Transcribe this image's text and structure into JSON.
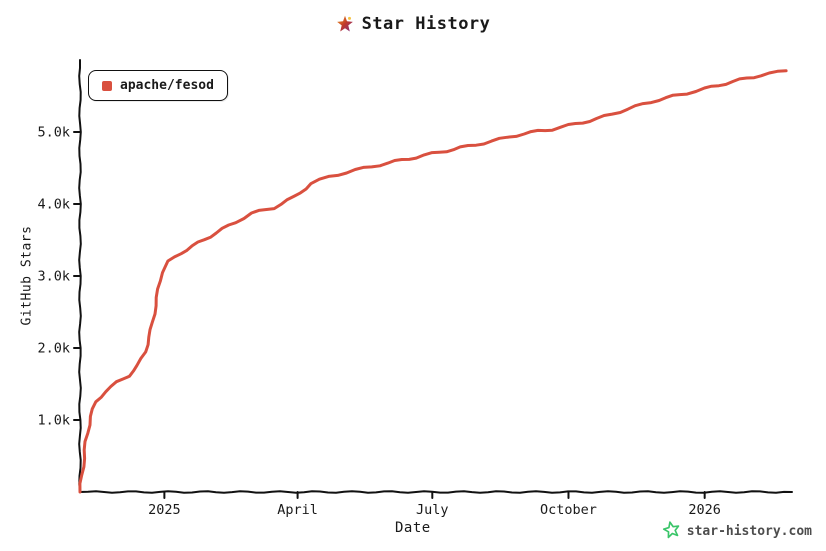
{
  "title": {
    "text": "Star History",
    "icon": "star-history-logo"
  },
  "legend": {
    "label": "apache/fesod"
  },
  "footer": {
    "brand": "star-history.com",
    "brand_color": "#3ac569",
    "icon": "green-star"
  },
  "colors": {
    "line": "#d9503f",
    "axis": "#111111",
    "text": "#1a1a1a"
  },
  "chart_data": {
    "type": "line",
    "title": "Star History",
    "xlabel": "Date",
    "ylabel": "GitHub Stars",
    "grid": false,
    "legend_position": "top-left",
    "x_range": [
      "2024-11-05",
      "2026-03-01"
    ],
    "y_range": [
      0,
      6000
    ],
    "x_ticks": [
      {
        "label": "2025",
        "date": "2025-01-01"
      },
      {
        "label": "April",
        "date": "2025-04-01"
      },
      {
        "label": "July",
        "date": "2025-07-01"
      },
      {
        "label": "October",
        "date": "2025-10-01"
      },
      {
        "label": "2026",
        "date": "2026-01-01"
      }
    ],
    "y_ticks": [
      {
        "label": "1.0k",
        "value": 1000
      },
      {
        "label": "2.0k",
        "value": 2000
      },
      {
        "label": "3.0k",
        "value": 3000
      },
      {
        "label": "4.0k",
        "value": 4000
      },
      {
        "label": "5.0k",
        "value": 5000
      }
    ],
    "series": [
      {
        "name": "apache/fesod",
        "color": "#d9503f",
        "points": [
          [
            "2024-11-05",
            0
          ],
          [
            "2024-11-07",
            350
          ],
          [
            "2024-11-09",
            700
          ],
          [
            "2024-11-12",
            1050
          ],
          [
            "2024-11-16",
            1250
          ],
          [
            "2024-11-22",
            1400
          ],
          [
            "2024-11-30",
            1520
          ],
          [
            "2024-12-08",
            1620
          ],
          [
            "2024-12-14",
            1750
          ],
          [
            "2024-12-19",
            1950
          ],
          [
            "2024-12-23",
            2250
          ],
          [
            "2024-12-27",
            2700
          ],
          [
            "2024-12-30",
            3050
          ],
          [
            "2025-01-04",
            3200
          ],
          [
            "2025-01-12",
            3320
          ],
          [
            "2025-01-24",
            3460
          ],
          [
            "2025-02-05",
            3600
          ],
          [
            "2025-02-18",
            3750
          ],
          [
            "2025-03-01",
            3870
          ],
          [
            "2025-03-16",
            3950
          ],
          [
            "2025-03-30",
            4100
          ],
          [
            "2025-04-10",
            4280
          ],
          [
            "2025-04-22",
            4380
          ],
          [
            "2025-05-10",
            4470
          ],
          [
            "2025-06-01",
            4570
          ],
          [
            "2025-06-20",
            4650
          ],
          [
            "2025-07-01",
            4700
          ],
          [
            "2025-07-20",
            4780
          ],
          [
            "2025-08-10",
            4870
          ],
          [
            "2025-09-01",
            4980
          ],
          [
            "2025-09-20",
            5040
          ],
          [
            "2025-10-01",
            5090
          ],
          [
            "2025-10-20",
            5180
          ],
          [
            "2025-11-10",
            5320
          ],
          [
            "2025-12-01",
            5450
          ],
          [
            "2025-12-20",
            5540
          ],
          [
            "2026-01-01",
            5600
          ],
          [
            "2026-01-20",
            5700
          ],
          [
            "2026-02-08",
            5790
          ],
          [
            "2026-02-25",
            5850
          ]
        ]
      }
    ]
  }
}
